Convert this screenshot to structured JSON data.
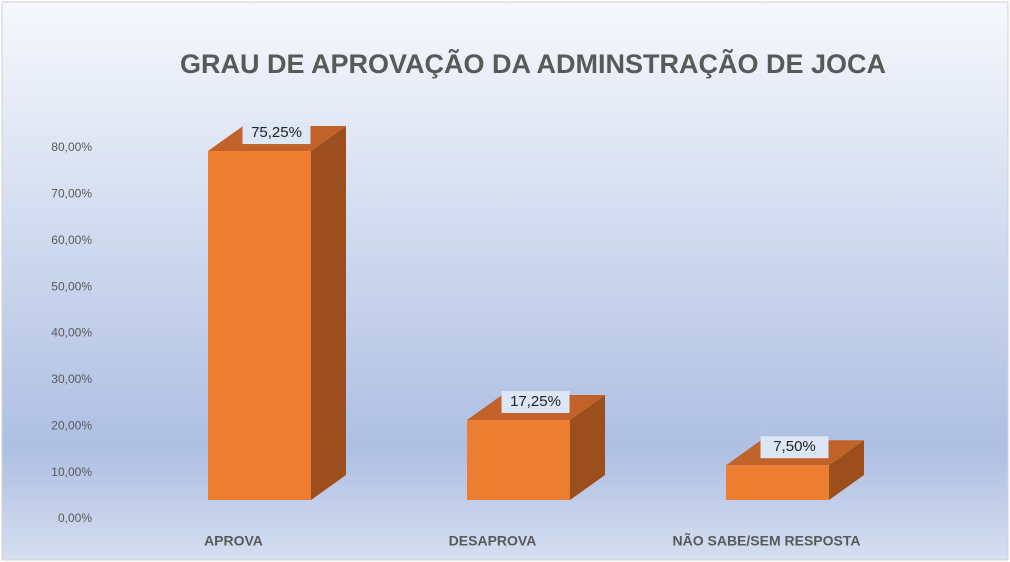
{
  "chart_data": {
    "type": "bar3d",
    "title": "GRAU DE APROVAÇÃO DA ADMINSTRAÇÃO DE JOCA",
    "categories": [
      "APROVA",
      "DESAPROVA",
      "NÃO SABE/SEM RESPOSTA"
    ],
    "values": [
      75.25,
      17.25,
      7.5
    ],
    "value_labels": [
      "75,25%",
      "17,25%",
      "7,50%"
    ],
    "color": "#ed7d31",
    "ylim": [
      0,
      80
    ],
    "yticks": [
      {
        "value": 0,
        "label": "0,00%"
      },
      {
        "value": 10,
        "label": "10,00%"
      },
      {
        "value": 20,
        "label": "20,00%"
      },
      {
        "value": 30,
        "label": "30,00%"
      },
      {
        "value": 40,
        "label": "40,00%"
      },
      {
        "value": 50,
        "label": "50,00%"
      },
      {
        "value": 60,
        "label": "60,00%"
      },
      {
        "value": 70,
        "label": "70,00%"
      },
      {
        "value": 80,
        "label": "80,00%"
      }
    ],
    "grid": false
  }
}
